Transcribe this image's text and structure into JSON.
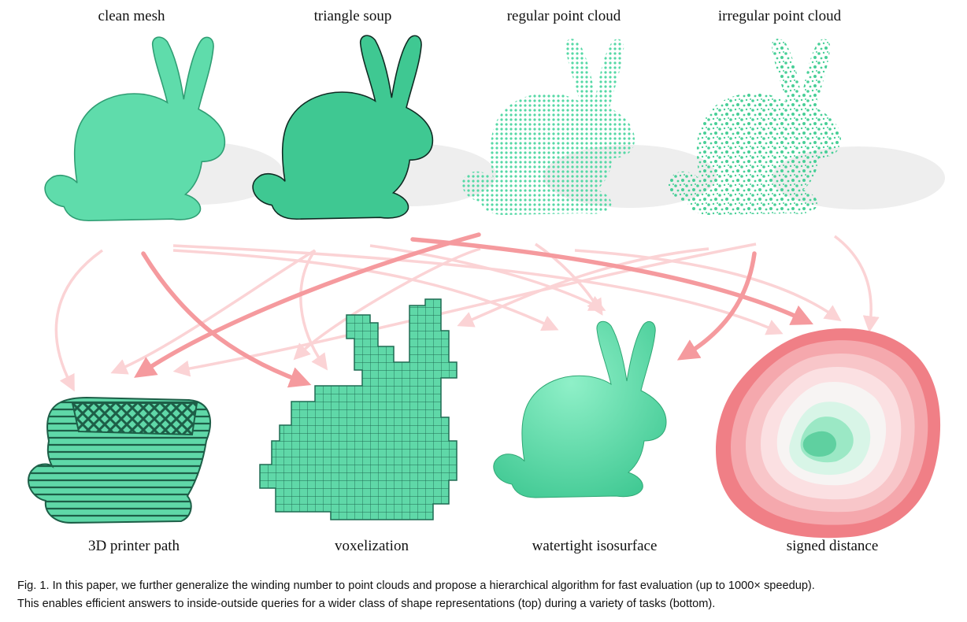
{
  "figure": {
    "top_labels": [
      "clean mesh",
      "triangle soup",
      "regular point cloud",
      "irregular point cloud"
    ],
    "bottom_labels": [
      "3D printer path",
      "voxelization",
      "watertight isosurface",
      "signed distance"
    ],
    "caption": {
      "line1": "Fig. 1.  In this paper, we further generalize the winding number to point clouds and propose a hierarchical algorithm for fast evaluation (up to 1000× speedup).",
      "line2": "This enables efficient answers to inside-outside queries for a wider class of shape representations (top) during a variety of tasks (bottom)."
    },
    "colors": {
      "mint": "#5fdcab",
      "mint_dark": "#2f9d73",
      "arrow_strong": "#f59a9e",
      "arrow_faint": "#fbd3d5",
      "sdf_outer": "#f07f86"
    }
  }
}
